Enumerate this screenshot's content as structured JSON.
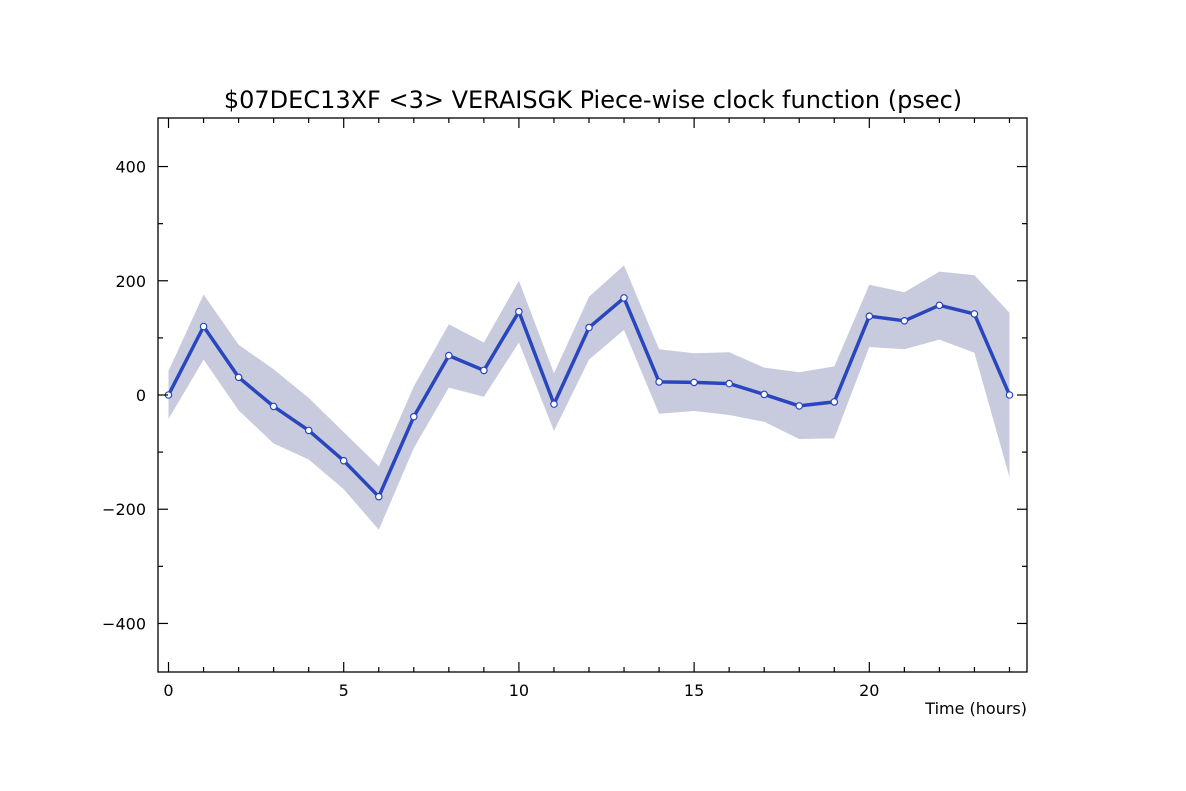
{
  "chart_data": {
    "type": "line",
    "title": "$07DEC13XF <3>  VERAISGK  Piece-wise clock function (psec)",
    "xlabel": "Time (hours)",
    "ylabel": "",
    "xlim": [
      -0.3,
      24.5
    ],
    "ylim": [
      -485,
      485
    ],
    "x_major_ticks": [
      0,
      5,
      10,
      15,
      20
    ],
    "x_minor_step": 1,
    "y_major_ticks": [
      -400,
      -200,
      0,
      200,
      400
    ],
    "y_minor_step": 100,
    "grid": false,
    "colors": {
      "line": "#2a46bf",
      "band": "#c7cbdd",
      "marker_fill": "#ffffff",
      "axes": "#000000"
    },
    "series": [
      {
        "x": [
          0,
          1,
          2,
          3,
          4,
          5,
          6,
          7,
          8,
          9,
          10,
          11,
          12,
          13,
          14,
          15,
          16,
          17,
          18,
          19,
          20,
          21,
          22,
          23,
          24
        ],
        "values": [
          0,
          120,
          31,
          -20,
          -62,
          -115,
          -178,
          -38,
          69,
          43,
          146,
          -16,
          118,
          170,
          23,
          22,
          20,
          1,
          -19,
          -12,
          138,
          130,
          157,
          142,
          0
        ],
        "upper": [
          42,
          176,
          88,
          45,
          -5,
          -65,
          -125,
          15,
          124,
          92,
          200,
          38,
          172,
          227,
          80,
          73,
          75,
          48,
          40,
          50,
          193,
          180,
          216,
          210,
          144
        ],
        "lower": [
          -42,
          62,
          -27,
          -85,
          -113,
          -165,
          -236,
          -93,
          13,
          -3,
          92,
          -63,
          62,
          114,
          -33,
          -28,
          -35,
          -47,
          -77,
          -76,
          84,
          80,
          97,
          74,
          -144
        ]
      }
    ]
  }
}
